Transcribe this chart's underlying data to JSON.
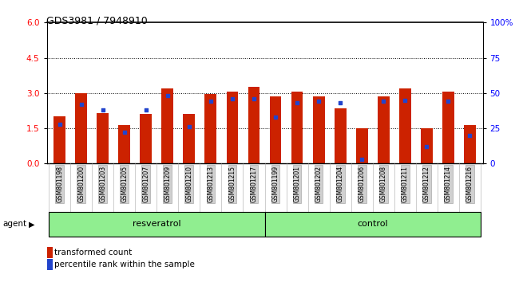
{
  "title": "GDS3981 / 7948910",
  "categories": [
    "GSM801198",
    "GSM801200",
    "GSM801203",
    "GSM801205",
    "GSM801207",
    "GSM801209",
    "GSM801210",
    "GSM801213",
    "GSM801215",
    "GSM801217",
    "GSM801199",
    "GSM801201",
    "GSM801202",
    "GSM801204",
    "GSM801206",
    "GSM801208",
    "GSM801211",
    "GSM801212",
    "GSM801214",
    "GSM801216"
  ],
  "transformed_count": [
    2.0,
    3.0,
    2.15,
    1.65,
    2.1,
    3.2,
    2.1,
    2.95,
    3.05,
    3.25,
    2.85,
    3.05,
    2.85,
    2.35,
    1.5,
    2.85,
    3.2,
    1.5,
    3.05,
    1.65
  ],
  "percentile_rank": [
    0.28,
    0.42,
    0.38,
    0.22,
    0.38,
    0.48,
    0.26,
    0.44,
    0.46,
    0.46,
    0.33,
    0.43,
    0.44,
    0.43,
    0.03,
    0.44,
    0.45,
    0.12,
    0.44,
    0.2
  ],
  "resveratrol_count": 10,
  "control_count": 10,
  "bar_color": "#cc2200",
  "dot_color": "#2244cc",
  "left_ylim": [
    0,
    6
  ],
  "right_ylim": [
    0,
    100
  ],
  "left_yticks": [
    0,
    1.5,
    3.0,
    4.5,
    6
  ],
  "right_yticks": [
    0,
    25,
    50,
    75,
    100
  ],
  "right_yticklabels": [
    "0",
    "25",
    "50",
    "75",
    "100%"
  ],
  "agent_label": "agent",
  "resveratrol_label": "resveratrol",
  "control_label": "control",
  "legend_items": [
    "transformed count",
    "percentile rank within the sample"
  ],
  "hline_values": [
    1.5,
    3.0,
    4.5
  ],
  "bar_width": 0.55
}
